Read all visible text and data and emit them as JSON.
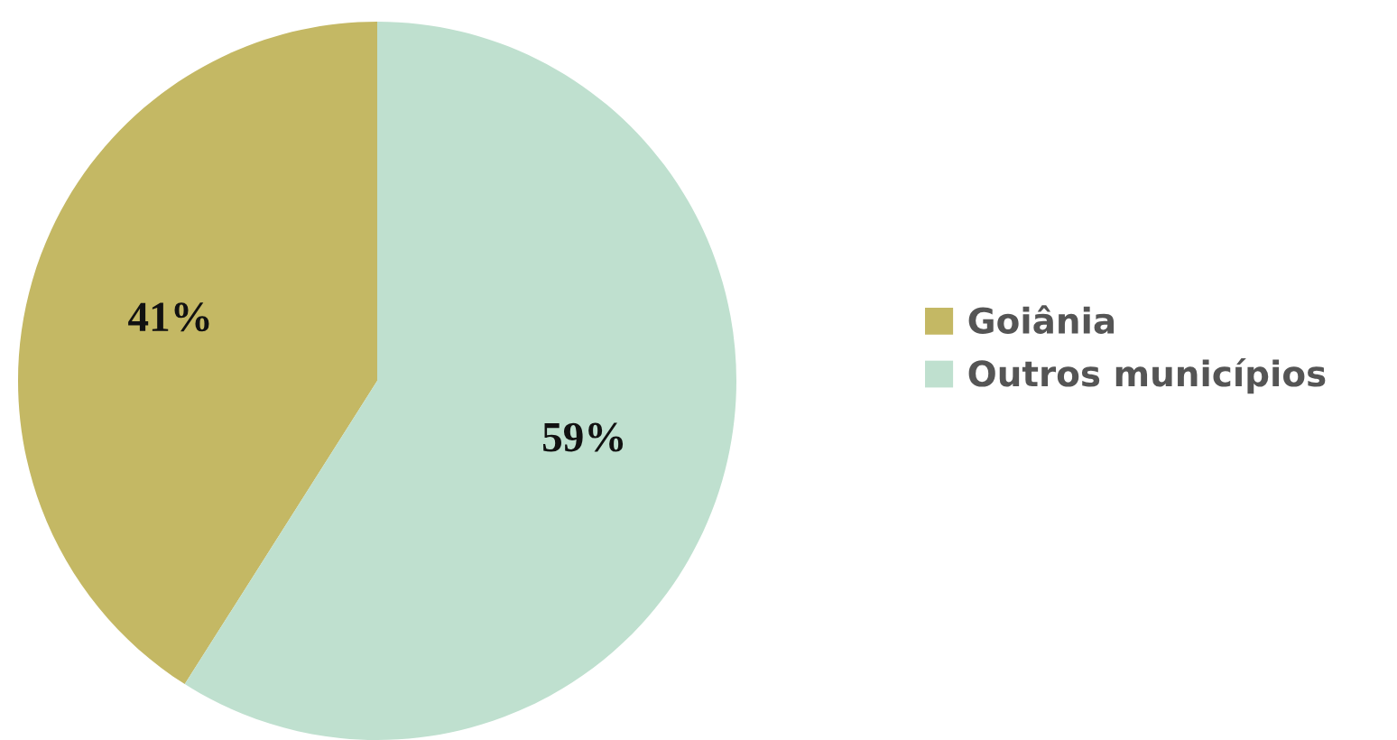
{
  "chart_data": {
    "type": "pie",
    "categories": [
      "Goiânia",
      "Outros municípios"
    ],
    "values": [
      41,
      59
    ],
    "colors": [
      "#c4b864",
      "#bfe0cf"
    ],
    "value_labels": [
      "41%",
      "59%"
    ],
    "legend": "right"
  }
}
